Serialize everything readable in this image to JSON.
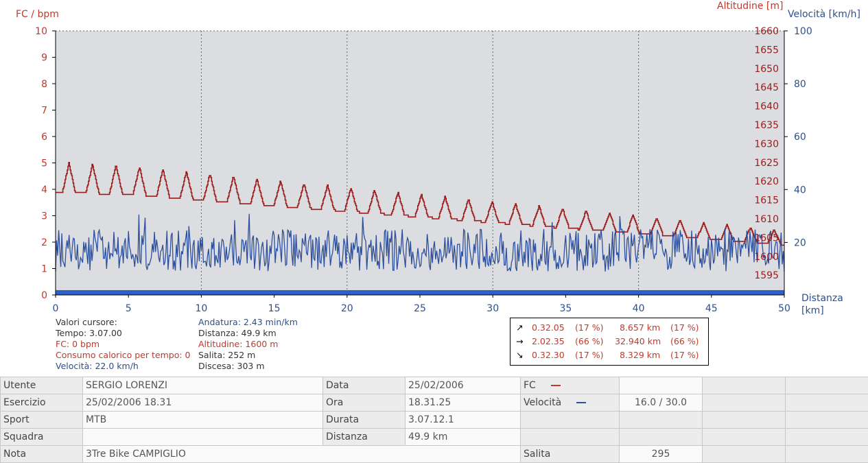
{
  "chart_data": {
    "type": "line",
    "xlabel": "Distanza [km]",
    "xlim": [
      0,
      50
    ],
    "x_ticks": [
      "0",
      "5",
      "10",
      "15",
      "20",
      "25",
      "30",
      "35",
      "40",
      "45",
      "50"
    ],
    "left_axis": {
      "label": "FC / bpm",
      "lim": [
        0,
        10
      ],
      "ticks": [
        "0",
        "1",
        "2",
        "3",
        "4",
        "5",
        "6",
        "7",
        "8",
        "9",
        "10"
      ]
    },
    "alt_axis": {
      "label": "Altitudine [m]",
      "ticks": [
        "1595",
        "1600",
        "1605",
        "1610",
        "1615",
        "1620",
        "1625",
        "1630",
        "1635",
        "1640",
        "1645",
        "1650",
        "1655",
        "1660"
      ]
    },
    "speed_axis": {
      "label": "Velocità [km/h]",
      "ticks": [
        "20",
        "40",
        "60",
        "80",
        "100"
      ]
    },
    "grid": true,
    "series": [
      {
        "name": "FC",
        "color": "#2c5fc8",
        "values": [
          0,
          0
        ],
        "x": [
          0,
          50
        ]
      },
      {
        "name": "Altitudine",
        "color": "#9b1b1b",
        "pattern": "repeating climb peaks of about 5–10 m, baseline 1618 m at 0 km falling to 1602 m at 50 km; first peak 1624 m near 1 km"
      },
      {
        "name": "Velocità",
        "color": "#2c4f9e",
        "pattern": "highly variable, roughly 8–30 km/h, mean about 17 km/h"
      }
    ]
  },
  "cursor": {
    "title": "Valori cursore:",
    "tempo": "Tempo: 3.07.00",
    "fc": "FC: 0 bpm",
    "consumo": "Consumo calorico per tempo: 0",
    "velocita": "Velocità: 22.0 km/h",
    "andatura": "Andatura: 2.43 min/km",
    "distanza": "Distanza: 49.9 km",
    "altitudine": "Altitudine: 1600 m",
    "salita": "Salita: 252 m",
    "discesa": "Discesa: 303 m"
  },
  "zones": [
    {
      "arrow": "↗",
      "time": "0.32.05",
      "time_pct": "(17 %)",
      "dist": "8.657 km",
      "dist_pct": "(17 %)"
    },
    {
      "arrow": "→",
      "time": "2.02.35",
      "time_pct": "(66 %)",
      "dist": "32.940 km",
      "dist_pct": "(66 %)"
    },
    {
      "arrow": "↘",
      "time": "0.32.30",
      "time_pct": "(17 %)",
      "dist": "8.329 km",
      "dist_pct": "(17 %)"
    }
  ],
  "table": {
    "utente_label": "Utente",
    "utente": "SERGIO LORENZI",
    "data_label": "Data",
    "data": "25/02/2006",
    "fc_label": "FC",
    "esercizio_label": "Esercizio",
    "esercizio": "25/02/2006 18.31",
    "ora_label": "Ora",
    "ora": "18.31.25",
    "velocita_label": "Velocità",
    "velocita": "16.0 / 30.0",
    "sport_label": "Sport",
    "sport": "MTB",
    "durata_label": "Durata",
    "durata": "3.07.12.1",
    "squadra_label": "Squadra",
    "distanza_label": "Distanza",
    "distanza": "49.9 km",
    "nota_label": "Nota",
    "nota": "3Tre Bike CAMPIGLIO",
    "salita_label": "Salita",
    "salita": "295"
  },
  "colors": {
    "fc": "#c0392b",
    "altitude": "#9b1b1b",
    "speed": "#2c4f9e",
    "plot_bg": "#dcdde0"
  }
}
